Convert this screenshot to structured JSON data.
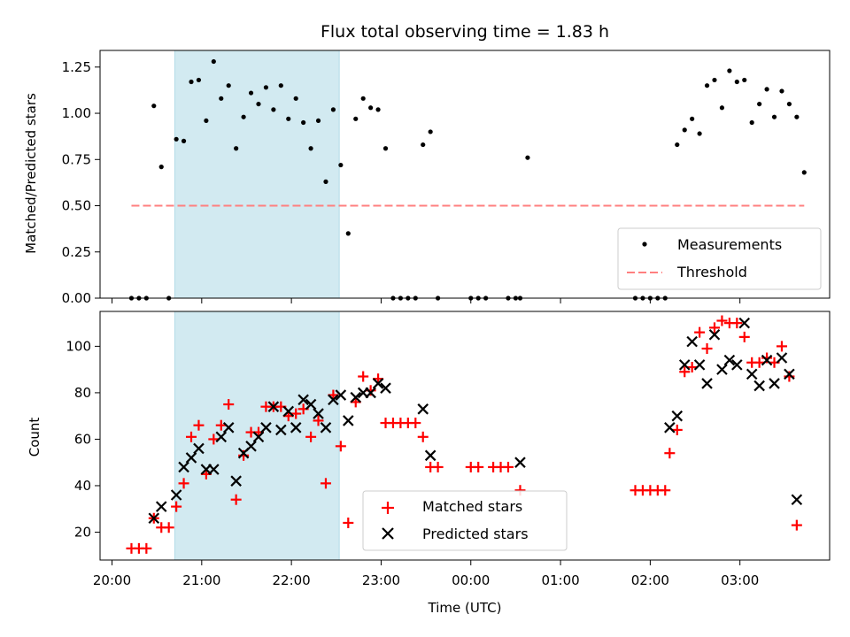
{
  "chart_data": [
    {
      "type": "scatter",
      "title": "Flux total observing time = 1.83 h",
      "xlabel": "",
      "ylabel": "Matched/Predicted stars",
      "x_tick_labels": [],
      "y_ticks": [
        0.0,
        0.25,
        0.5,
        0.75,
        1.0,
        1.25
      ],
      "y_tick_labels": [
        "0.00",
        "0.25",
        "0.50",
        "0.75",
        "1.00",
        "1.25"
      ],
      "ylim": [
        0,
        1.34
      ],
      "xlim": [
        "19:52",
        "04:00"
      ],
      "shaded_span": [
        "20:42",
        "22:32"
      ],
      "shaded_color": "#add8e6",
      "legend_position": "lower-right",
      "series": [
        {
          "name": "Measurements",
          "marker": "dot",
          "color": "#000000",
          "points": [
            [
              "20:13",
              0
            ],
            [
              "20:18",
              0
            ],
            [
              "20:23",
              0
            ],
            [
              "20:28",
              1.04
            ],
            [
              "20:33",
              0.71
            ],
            [
              "20:38",
              0
            ],
            [
              "20:43",
              0.86
            ],
            [
              "20:48",
              0.85
            ],
            [
              "20:53",
              1.17
            ],
            [
              "20:58",
              1.18
            ],
            [
              "21:03",
              0.96
            ],
            [
              "21:08",
              1.28
            ],
            [
              "21:13",
              1.08
            ],
            [
              "21:18",
              1.15
            ],
            [
              "21:23",
              0.81
            ],
            [
              "21:28",
              0.98
            ],
            [
              "21:33",
              1.11
            ],
            [
              "21:38",
              1.05
            ],
            [
              "21:43",
              1.14
            ],
            [
              "21:48",
              1.02
            ],
            [
              "21:53",
              1.15
            ],
            [
              "21:58",
              0.97
            ],
            [
              "22:03",
              1.08
            ],
            [
              "22:08",
              0.95
            ],
            [
              "22:13",
              0.81
            ],
            [
              "22:18",
              0.96
            ],
            [
              "22:23",
              0.63
            ],
            [
              "22:28",
              1.02
            ],
            [
              "22:33",
              0.72
            ],
            [
              "22:38",
              0.35
            ],
            [
              "22:43",
              0.97
            ],
            [
              "22:48",
              1.08
            ],
            [
              "22:53",
              1.03
            ],
            [
              "22:58",
              1.02
            ],
            [
              "23:03",
              0.81
            ],
            [
              "23:08",
              0
            ],
            [
              "23:13",
              0
            ],
            [
              "23:18",
              0
            ],
            [
              "23:23",
              0
            ],
            [
              "23:28",
              0.83
            ],
            [
              "23:33",
              0.9
            ],
            [
              "23:38",
              0
            ],
            [
              "00:00",
              0
            ],
            [
              "00:05",
              0
            ],
            [
              "00:10",
              0
            ],
            [
              "00:25",
              0
            ],
            [
              "00:30",
              0
            ],
            [
              "00:33",
              0
            ],
            [
              "00:38",
              0.76
            ],
            [
              "01:50",
              0
            ],
            [
              "01:55",
              0
            ],
            [
              "02:00",
              0
            ],
            [
              "02:05",
              0
            ],
            [
              "02:10",
              0
            ],
            [
              "02:18",
              0.83
            ],
            [
              "02:23",
              0.91
            ],
            [
              "02:28",
              0.97
            ],
            [
              "02:33",
              0.89
            ],
            [
              "02:38",
              1.15
            ],
            [
              "02:43",
              1.18
            ],
            [
              "02:48",
              1.03
            ],
            [
              "02:53",
              1.23
            ],
            [
              "02:58",
              1.17
            ],
            [
              "03:03",
              1.18
            ],
            [
              "03:08",
              0.95
            ],
            [
              "03:13",
              1.05
            ],
            [
              "03:18",
              1.13
            ],
            [
              "03:23",
              0.98
            ],
            [
              "03:28",
              1.12
            ],
            [
              "03:33",
              1.05
            ],
            [
              "03:38",
              0.98
            ],
            [
              "03:43",
              0.68
            ]
          ]
        },
        {
          "name": "Threshold",
          "marker": "dashed-line",
          "color": "#ff7f7f",
          "points": [
            [
              "20:13",
              0.5
            ],
            [
              "03:43",
              0.5
            ]
          ]
        }
      ]
    },
    {
      "type": "scatter",
      "title": "",
      "xlabel": "Time (UTC)",
      "ylabel": "Count",
      "x_ticks": [
        "20:00",
        "21:00",
        "22:00",
        "23:00",
        "00:00",
        "01:00",
        "02:00",
        "03:00"
      ],
      "x_tick_labels": [
        "20:00",
        "21:00",
        "22:00",
        "23:00",
        "00:00",
        "01:00",
        "02:00",
        "03:00"
      ],
      "y_ticks": [
        20,
        40,
        60,
        80,
        100
      ],
      "y_tick_labels": [
        "20",
        "40",
        "60",
        "80",
        "100"
      ],
      "ylim": [
        8,
        115
      ],
      "xlim": [
        "19:52",
        "04:00"
      ],
      "shaded_span": [
        "20:42",
        "22:32"
      ],
      "shaded_color": "#add8e6",
      "legend_position": "lower-center",
      "series": [
        {
          "name": "Matched stars",
          "marker": "plus",
          "color": "#ff0000",
          "points": [
            [
              "20:13",
              13
            ],
            [
              "20:18",
              13
            ],
            [
              "20:23",
              13
            ],
            [
              "20:28",
              26
            ],
            [
              "20:33",
              22
            ],
            [
              "20:38",
              22
            ],
            [
              "20:43",
              31
            ],
            [
              "20:48",
              41
            ],
            [
              "20:53",
              61
            ],
            [
              "20:58",
              66
            ],
            [
              "21:03",
              45
            ],
            [
              "21:08",
              60
            ],
            [
              "21:13",
              66
            ],
            [
              "21:18",
              75
            ],
            [
              "21:23",
              34
            ],
            [
              "21:28",
              53
            ],
            [
              "21:33",
              63
            ],
            [
              "21:38",
              63
            ],
            [
              "21:43",
              74
            ],
            [
              "21:48",
              74
            ],
            [
              "21:53",
              74
            ],
            [
              "21:58",
              70
            ],
            [
              "22:03",
              71
            ],
            [
              "22:08",
              73
            ],
            [
              "22:13",
              61
            ],
            [
              "22:18",
              68
            ],
            [
              "22:23",
              41
            ],
            [
              "22:28",
              79
            ],
            [
              "22:33",
              57
            ],
            [
              "22:38",
              24
            ],
            [
              "22:43",
              76
            ],
            [
              "22:48",
              87
            ],
            [
              "22:53",
              81
            ],
            [
              "22:58",
              86
            ],
            [
              "23:03",
              67
            ],
            [
              "23:08",
              67
            ],
            [
              "23:13",
              67
            ],
            [
              "23:18",
              67
            ],
            [
              "23:23",
              67
            ],
            [
              "23:28",
              61
            ],
            [
              "23:33",
              48
            ],
            [
              "23:38",
              48
            ],
            [
              "00:00",
              48
            ],
            [
              "00:05",
              48
            ],
            [
              "00:15",
              48
            ],
            [
              "00:20",
              48
            ],
            [
              "00:25",
              48
            ],
            [
              "00:33",
              38
            ],
            [
              "01:50",
              38
            ],
            [
              "01:55",
              38
            ],
            [
              "02:00",
              38
            ],
            [
              "02:05",
              38
            ],
            [
              "02:10",
              38
            ],
            [
              "02:13",
              54
            ],
            [
              "02:18",
              64
            ],
            [
              "02:23",
              89
            ],
            [
              "02:28",
              91
            ],
            [
              "02:33",
              106
            ],
            [
              "02:38",
              99
            ],
            [
              "02:43",
              108
            ],
            [
              "02:48",
              111
            ],
            [
              "02:53",
              110
            ],
            [
              "02:58",
              110
            ],
            [
              "03:03",
              104
            ],
            [
              "03:08",
              93
            ],
            [
              "03:13",
              93
            ],
            [
              "03:18",
              95
            ],
            [
              "03:23",
              93
            ],
            [
              "03:28",
              100
            ],
            [
              "03:33",
              87
            ],
            [
              "03:38",
              23
            ]
          ]
        },
        {
          "name": "Predicted stars",
          "marker": "x",
          "color": "#000000",
          "points": [
            [
              "20:28",
              26
            ],
            [
              "20:33",
              31
            ],
            [
              "20:43",
              36
            ],
            [
              "20:48",
              48
            ],
            [
              "20:53",
              52
            ],
            [
              "20:58",
              56
            ],
            [
              "21:03",
              47
            ],
            [
              "21:08",
              47
            ],
            [
              "21:13",
              61
            ],
            [
              "21:18",
              65
            ],
            [
              "21:23",
              42
            ],
            [
              "21:28",
              54
            ],
            [
              "21:33",
              57
            ],
            [
              "21:38",
              61
            ],
            [
              "21:43",
              65
            ],
            [
              "21:48",
              74
            ],
            [
              "21:53",
              64
            ],
            [
              "21:58",
              72
            ],
            [
              "22:03",
              65
            ],
            [
              "22:08",
              77
            ],
            [
              "22:13",
              75
            ],
            [
              "22:18",
              71
            ],
            [
              "22:23",
              65
            ],
            [
              "22:28",
              77
            ],
            [
              "22:33",
              79
            ],
            [
              "22:38",
              68
            ],
            [
              "22:43",
              78
            ],
            [
              "22:48",
              80
            ],
            [
              "22:53",
              80
            ],
            [
              "22:58",
              84
            ],
            [
              "23:03",
              82
            ],
            [
              "23:28",
              73
            ],
            [
              "23:33",
              53
            ],
            [
              "00:33",
              50
            ],
            [
              "02:13",
              65
            ],
            [
              "02:18",
              70
            ],
            [
              "02:23",
              92
            ],
            [
              "02:28",
              102
            ],
            [
              "02:33",
              92
            ],
            [
              "02:38",
              84
            ],
            [
              "02:43",
              105
            ],
            [
              "02:48",
              90
            ],
            [
              "02:53",
              94
            ],
            [
              "02:58",
              92
            ],
            [
              "03:03",
              110
            ],
            [
              "03:08",
              88
            ],
            [
              "03:13",
              83
            ],
            [
              "03:18",
              94
            ],
            [
              "03:23",
              84
            ],
            [
              "03:28",
              95
            ],
            [
              "03:33",
              88
            ],
            [
              "03:38",
              34
            ]
          ]
        }
      ]
    }
  ]
}
